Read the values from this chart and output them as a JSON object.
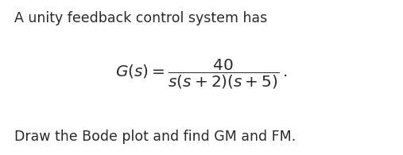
{
  "background_color": "#ffffff",
  "line1": "A unity feedback control system has",
  "line1_fontsize": 12.5,
  "formula": "$G(s) = \\dfrac{40}{s(s+2)(s+5)}\\,.$",
  "formula_fontsize": 14.5,
  "line3": "Draw the Bode plot and find GM and FM.",
  "line3_fontsize": 12.5,
  "text_color": "#2a2a2a",
  "fig_width": 5.07,
  "fig_height": 1.95,
  "dpi": 100
}
